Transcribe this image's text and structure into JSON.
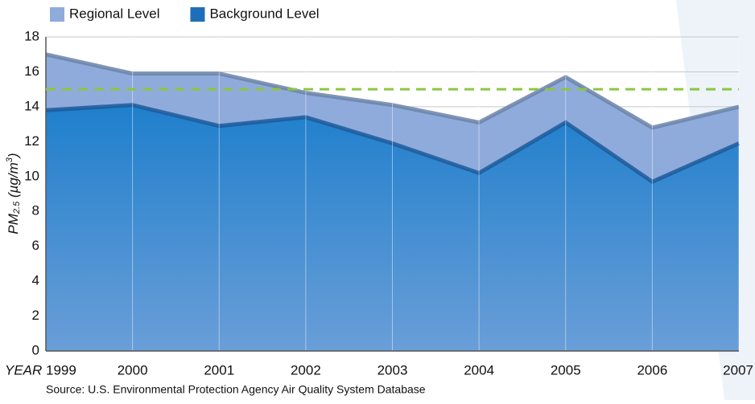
{
  "chart_data": {
    "type": "area",
    "x": [
      1999,
      2000,
      2001,
      2002,
      2003,
      2004,
      2005,
      2006,
      2007
    ],
    "xlim": [
      1999,
      2007
    ],
    "xlabel": "YEAR",
    "ylabel": {
      "base": "PM",
      "sub": "2.5",
      "unit": " (µg/m",
      "sup": "3",
      "end": ")"
    },
    "series": [
      {
        "name": "Regional Level",
        "color": "#8fabdc",
        "values": [
          17.0,
          15.9,
          15.9,
          14.8,
          14.1,
          13.1,
          15.7,
          12.8,
          14.0
        ]
      },
      {
        "name": "Background Level",
        "color": "#1f6fb8",
        "values": [
          13.8,
          14.1,
          12.9,
          13.4,
          11.9,
          10.2,
          13.1,
          9.7,
          11.9
        ]
      }
    ],
    "reference_line": {
      "value": 15,
      "color": "#8cc63f"
    },
    "ylim": [
      0,
      18
    ],
    "yticks": [
      0,
      2,
      4,
      6,
      8,
      10,
      12,
      14,
      16,
      18
    ],
    "grid": true,
    "source": "Source: U.S. Environmental Protection Agency Air Quality System Database"
  }
}
